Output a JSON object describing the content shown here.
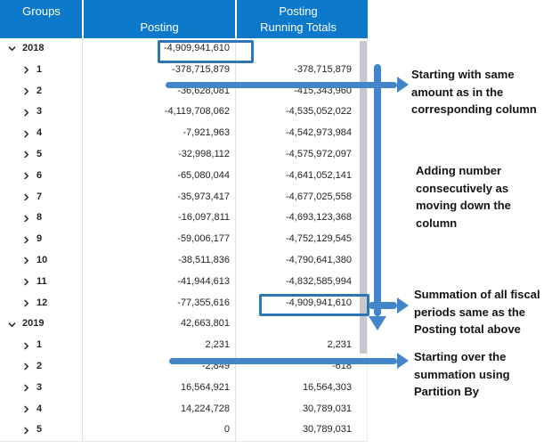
{
  "table": {
    "header": {
      "groups": "Groups",
      "posting": "Posting",
      "running_line1": "Posting",
      "running_line2": "Running Totals"
    },
    "rows": [
      {
        "type": "year",
        "expanded": true,
        "label": "2018",
        "posting": "-4,909,941,610",
        "running": "",
        "boxed": "posting"
      },
      {
        "type": "month",
        "expanded": false,
        "label": "1",
        "posting": "-378,715,879",
        "running": "-378,715,879",
        "boxed": null
      },
      {
        "type": "month",
        "expanded": false,
        "label": "2",
        "posting": "-36,628,081",
        "running": "-415,343,960",
        "boxed": null
      },
      {
        "type": "month",
        "expanded": false,
        "label": "3",
        "posting": "-4,119,708,062",
        "running": "-4,535,052,022",
        "boxed": null
      },
      {
        "type": "month",
        "expanded": false,
        "label": "4",
        "posting": "-7,921,963",
        "running": "-4,542,973,984",
        "boxed": null
      },
      {
        "type": "month",
        "expanded": false,
        "label": "5",
        "posting": "-32,998,112",
        "running": "-4,575,972,097",
        "boxed": null
      },
      {
        "type": "month",
        "expanded": false,
        "label": "6",
        "posting": "-65,080,044",
        "running": "-4,641,052,141",
        "boxed": null
      },
      {
        "type": "month",
        "expanded": false,
        "label": "7",
        "posting": "-35,973,417",
        "running": "-4,677,025,558",
        "boxed": null
      },
      {
        "type": "month",
        "expanded": false,
        "label": "8",
        "posting": "-16,097,811",
        "running": "-4,693,123,368",
        "boxed": null
      },
      {
        "type": "month",
        "expanded": false,
        "label": "9",
        "posting": "-59,006,177",
        "running": "-4,752,129,545",
        "boxed": null
      },
      {
        "type": "month",
        "expanded": false,
        "label": "10",
        "posting": "-38,511,836",
        "running": "-4,790,641,380",
        "boxed": null
      },
      {
        "type": "month",
        "expanded": false,
        "label": "11",
        "posting": "-41,944,613",
        "running": "-4,832,585,994",
        "boxed": null
      },
      {
        "type": "month",
        "expanded": false,
        "label": "12",
        "posting": "-77,355,616",
        "running": "-4,909,941,610",
        "boxed": "running"
      },
      {
        "type": "year",
        "expanded": true,
        "label": "2019",
        "posting": "42,663,801",
        "running": "",
        "boxed": null
      },
      {
        "type": "month",
        "expanded": false,
        "label": "1",
        "posting": "2,231",
        "running": "2,231",
        "boxed": null
      },
      {
        "type": "month",
        "expanded": false,
        "label": "2",
        "posting": "-2,849",
        "running": "-618",
        "boxed": null
      },
      {
        "type": "month",
        "expanded": false,
        "label": "3",
        "posting": "16,564,921",
        "running": "16,564,303",
        "boxed": null
      },
      {
        "type": "month",
        "expanded": false,
        "label": "4",
        "posting": "14,224,728",
        "running": "30,789,031",
        "boxed": null
      },
      {
        "type": "month",
        "expanded": false,
        "label": "5",
        "posting": "0",
        "running": "30,789,031",
        "boxed": null
      }
    ]
  },
  "annotations": [
    {
      "text": "Starting with same\namount as in the\ncorresponding column"
    },
    {
      "text": "Adding number\nconsecutively as\nmoving down the\ncolumn"
    },
    {
      "text": "Summation of all fiscal\nperiods same as the\nPosting total above"
    },
    {
      "text": "Starting over the\nsummation using\nPartition By"
    }
  ],
  "icons": {
    "year_chevron": "chevron-down-icon",
    "month_chevron": "chevron-right-icon"
  },
  "colors": {
    "header_bg": "#0C79CB",
    "header_text": "#FFFFFF",
    "arrow_blue": "#4285C8",
    "highlight_box_border": "#2E75B6",
    "row_text": "#252423",
    "scrollbar_thumb": "#C6C8D0"
  }
}
